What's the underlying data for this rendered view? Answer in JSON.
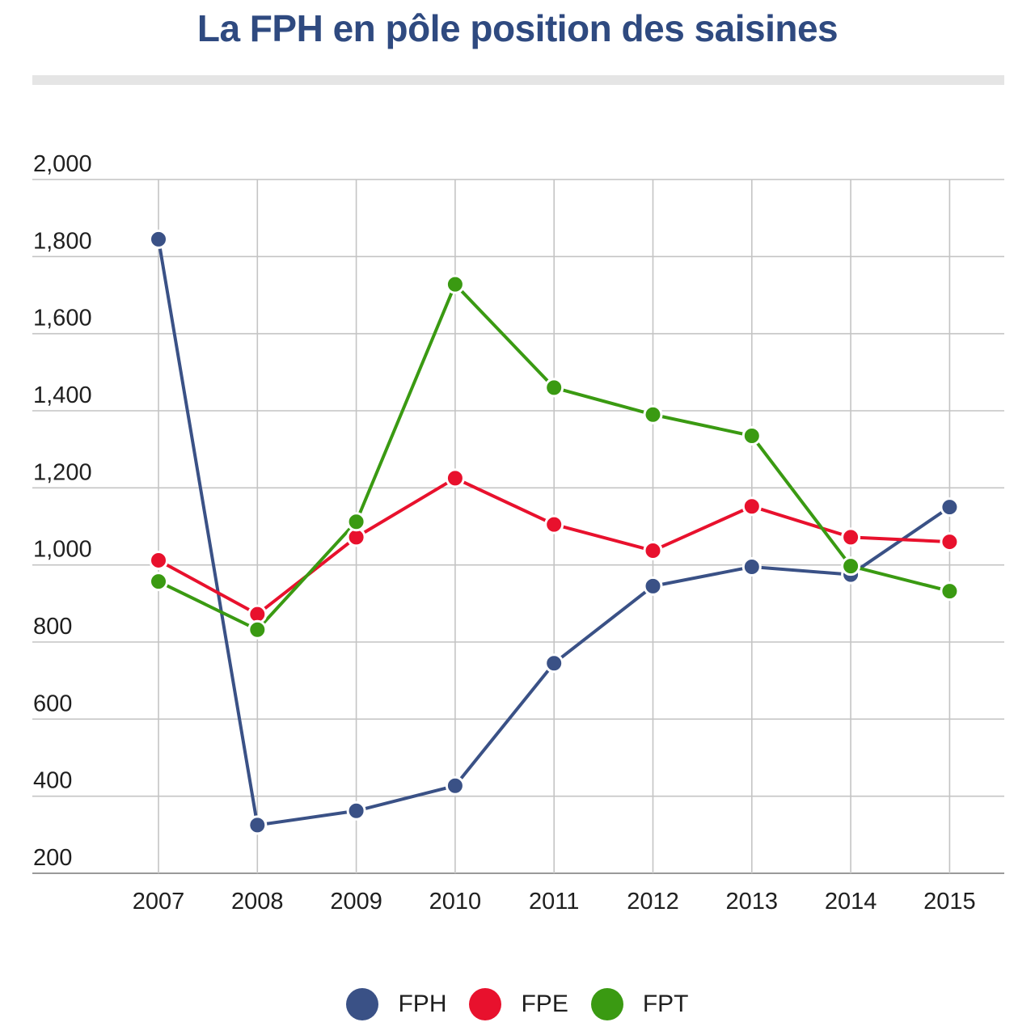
{
  "chart_data": {
    "type": "line",
    "title": "La FPH en pôle position des saisines",
    "x": [
      "2007",
      "2008",
      "2009",
      "2010",
      "2011",
      "2012",
      "2013",
      "2014",
      "2015"
    ],
    "ylim": [
      200,
      2000
    ],
    "yticks": [
      200,
      400,
      600,
      800,
      1000,
      1200,
      1400,
      1600,
      1800,
      2000
    ],
    "ytick_labels": [
      "200",
      "400",
      "600",
      "800",
      "1,000",
      "1,200",
      "1,400",
      "1,600",
      "1,800",
      "2,000"
    ],
    "grid": true,
    "legend_position": "bottom-center",
    "series": [
      {
        "name": "FPH",
        "color": "#3a5186",
        "values": [
          1845,
          325,
          362,
          427,
          745,
          945,
          995,
          975,
          1150
        ]
      },
      {
        "name": "FPE",
        "color": "#e8112d",
        "values": [
          1012,
          872,
          1072,
          1225,
          1105,
          1037,
          1152,
          1072,
          1060
        ]
      },
      {
        "name": "FPT",
        "color": "#3a9a12",
        "values": [
          957,
          832,
          1112,
          1728,
          1460,
          1390,
          1335,
          997,
          932
        ]
      }
    ]
  }
}
